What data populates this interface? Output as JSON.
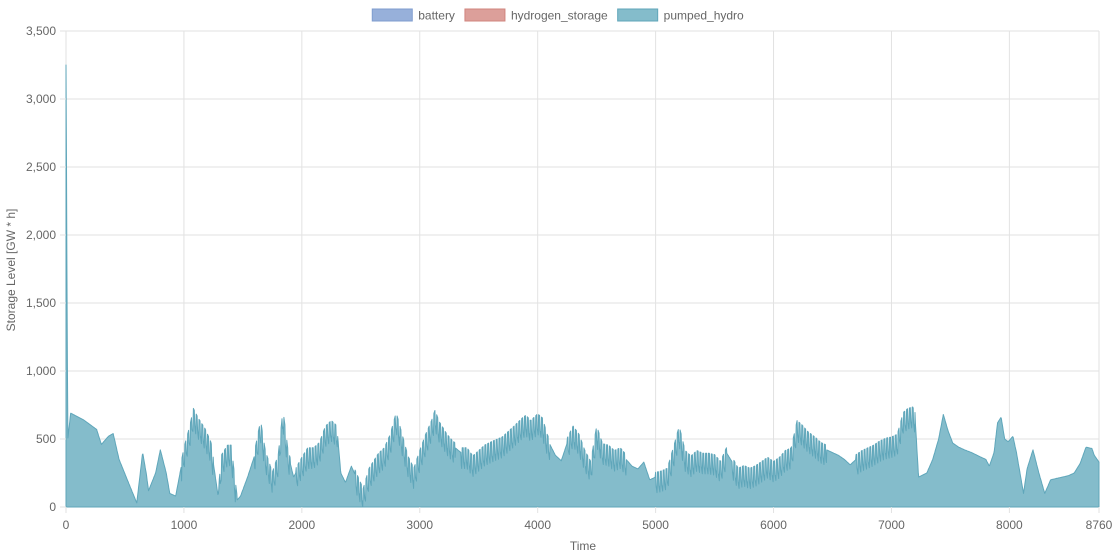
{
  "chart_data": {
    "type": "area",
    "xlabel": "Time",
    "ylabel": "Storage Level [GW * h]",
    "xlim": [
      0,
      8760
    ],
    "ylim": [
      0,
      3500
    ],
    "x_ticks": [
      "0",
      "1000",
      "2000",
      "3000",
      "4000",
      "5000",
      "6000",
      "7000",
      "8000",
      "8760"
    ],
    "y_ticks": [
      "0",
      "500",
      "1,000",
      "1,500",
      "2,000",
      "2,500",
      "3,000",
      "3,500"
    ],
    "grid": true,
    "legend_position": "top-center",
    "series": [
      {
        "name": "battery",
        "color": "#97b0da",
        "border": "#7f9dcf",
        "values": []
      },
      {
        "name": "hydrogen_storage",
        "color": "#dc9f9a",
        "border": "#d0847e",
        "values": []
      },
      {
        "name": "pumped_hydro",
        "color": "#84bccb",
        "border": "#5fa6ba",
        "base_envelope": [
          [
            0,
            3250
          ],
          [
            15,
            500
          ],
          [
            40,
            690
          ],
          [
            150,
            640
          ],
          [
            260,
            570
          ],
          [
            300,
            460
          ],
          [
            360,
            520
          ],
          [
            400,
            540
          ],
          [
            450,
            350
          ],
          [
            520,
            200
          ],
          [
            600,
            30
          ],
          [
            650,
            400
          ],
          [
            680,
            250
          ],
          [
            700,
            120
          ],
          [
            760,
            250
          ],
          [
            800,
            420
          ],
          [
            850,
            250
          ],
          [
            880,
            100
          ],
          [
            930,
            80
          ],
          [
            1000,
            400
          ],
          [
            1050,
            560
          ],
          [
            1080,
            690
          ],
          [
            1120,
            620
          ],
          [
            1180,
            540
          ],
          [
            1230,
            440
          ],
          [
            1270,
            200
          ],
          [
            1290,
            80
          ],
          [
            1320,
            350
          ],
          [
            1370,
            420
          ],
          [
            1400,
            420
          ],
          [
            1430,
            200
          ],
          [
            1450,
            50
          ],
          [
            1480,
            80
          ],
          [
            1540,
            220
          ],
          [
            1600,
            380
          ],
          [
            1650,
            600
          ],
          [
            1690,
            380
          ],
          [
            1750,
            220
          ],
          [
            1800,
            350
          ],
          [
            1840,
            680
          ],
          [
            1880,
            400
          ],
          [
            1930,
            220
          ],
          [
            2000,
            330
          ],
          [
            2050,
            400
          ],
          [
            2100,
            400
          ],
          [
            2150,
            440
          ],
          [
            2200,
            560
          ],
          [
            2250,
            600
          ],
          [
            2300,
            560
          ],
          [
            2330,
            250
          ],
          [
            2370,
            180
          ],
          [
            2420,
            300
          ],
          [
            2470,
            200
          ],
          [
            2520,
            100
          ],
          [
            2570,
            250
          ],
          [
            2650,
            360
          ],
          [
            2700,
            400
          ],
          [
            2750,
            500
          ],
          [
            2800,
            660
          ],
          [
            2850,
            500
          ],
          [
            2900,
            340
          ],
          [
            2950,
            250
          ],
          [
            3000,
            380
          ],
          [
            3050,
            500
          ],
          [
            3100,
            600
          ],
          [
            3130,
            680
          ],
          [
            3160,
            600
          ],
          [
            3230,
            500
          ],
          [
            3280,
            450
          ],
          [
            3350,
            400
          ],
          [
            3400,
            400
          ],
          [
            3450,
            340
          ],
          [
            3500,
            380
          ],
          [
            3550,
            420
          ],
          [
            3620,
            450
          ],
          [
            3700,
            480
          ],
          [
            3800,
            560
          ],
          [
            3870,
            620
          ],
          [
            3900,
            640
          ],
          [
            3940,
            600
          ],
          [
            4000,
            650
          ],
          [
            4040,
            620
          ],
          [
            4080,
            500
          ],
          [
            4150,
            380
          ],
          [
            4200,
            340
          ],
          [
            4250,
            470
          ],
          [
            4300,
            560
          ],
          [
            4350,
            500
          ],
          [
            4400,
            380
          ],
          [
            4450,
            300
          ],
          [
            4500,
            560
          ],
          [
            4550,
            430
          ],
          [
            4600,
            420
          ],
          [
            4650,
            380
          ],
          [
            4700,
            400
          ],
          [
            4750,
            350
          ],
          [
            4800,
            300
          ],
          [
            4850,
            280
          ],
          [
            4900,
            330
          ],
          [
            4950,
            200
          ],
          [
            5000,
            220
          ],
          [
            5050,
            230
          ],
          [
            5100,
            250
          ],
          [
            5150,
            400
          ],
          [
            5200,
            560
          ],
          [
            5250,
            380
          ],
          [
            5300,
            340
          ],
          [
            5350,
            380
          ],
          [
            5400,
            360
          ],
          [
            5450,
            360
          ],
          [
            5500,
            350
          ],
          [
            5550,
            300
          ],
          [
            5600,
            400
          ],
          [
            5650,
            330
          ],
          [
            5700,
            250
          ],
          [
            5750,
            270
          ],
          [
            5800,
            250
          ],
          [
            5850,
            270
          ],
          [
            5900,
            300
          ],
          [
            5950,
            330
          ],
          [
            6000,
            300
          ],
          [
            6050,
            330
          ],
          [
            6100,
            380
          ],
          [
            6150,
            400
          ],
          [
            6200,
            600
          ],
          [
            6240,
            570
          ],
          [
            6290,
            520
          ],
          [
            6350,
            480
          ],
          [
            6400,
            440
          ],
          [
            6450,
            420
          ],
          [
            6500,
            400
          ],
          [
            6550,
            380
          ],
          [
            6600,
            350
          ],
          [
            6650,
            310
          ],
          [
            6700,
            350
          ],
          [
            6750,
            380
          ],
          [
            6800,
            400
          ],
          [
            6850,
            420
          ],
          [
            6900,
            450
          ],
          [
            6950,
            470
          ],
          [
            7000,
            480
          ],
          [
            7050,
            500
          ],
          [
            7100,
            660
          ],
          [
            7140,
            690
          ],
          [
            7180,
            700
          ],
          [
            7200,
            660
          ],
          [
            7230,
            220
          ],
          [
            7300,
            250
          ],
          [
            7350,
            350
          ],
          [
            7400,
            500
          ],
          [
            7440,
            680
          ],
          [
            7480,
            560
          ],
          [
            7520,
            470
          ],
          [
            7570,
            440
          ],
          [
            7620,
            420
          ],
          [
            7680,
            400
          ],
          [
            7750,
            370
          ],
          [
            7800,
            350
          ],
          [
            7830,
            300
          ],
          [
            7870,
            400
          ],
          [
            7900,
            620
          ],
          [
            7930,
            660
          ],
          [
            7960,
            500
          ],
          [
            7990,
            480
          ],
          [
            8030,
            520
          ],
          [
            8060,
            400
          ],
          [
            8090,
            250
          ],
          [
            8120,
            100
          ],
          [
            8150,
            280
          ],
          [
            8200,
            420
          ],
          [
            8250,
            250
          ],
          [
            8300,
            100
          ],
          [
            8350,
            200
          ],
          [
            8400,
            210
          ],
          [
            8450,
            220
          ],
          [
            8500,
            230
          ],
          [
            8550,
            250
          ],
          [
            8600,
            320
          ],
          [
            8650,
            440
          ],
          [
            8700,
            430
          ],
          [
            8720,
            380
          ],
          [
            8760,
            330
          ]
        ],
        "spike_periods": [
          [
            980,
            1250
          ],
          [
            1300,
            1450
          ],
          [
            1600,
            1900
          ],
          [
            1950,
            2300
          ],
          [
            2450,
            3300
          ],
          [
            3350,
            4100
          ],
          [
            4250,
            4750
          ],
          [
            5000,
            5250
          ],
          [
            5250,
            5600
          ],
          [
            5650,
            6150
          ],
          [
            6150,
            6450
          ],
          [
            6700,
            7200
          ]
        ],
        "spike_amplitude": 140
      }
    ]
  }
}
